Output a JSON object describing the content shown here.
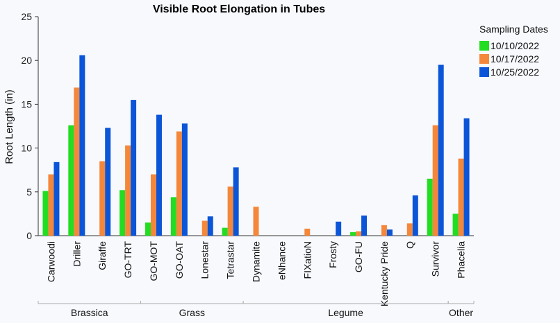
{
  "chart_data": {
    "type": "bar",
    "title": "Visible Root Elongation in Tubes",
    "ylabel": "Root Length (in)",
    "xlabel": "",
    "ylim": [
      0,
      25
    ],
    "yticks": [
      0,
      5,
      10,
      15,
      20,
      25
    ],
    "grid": false,
    "legend": {
      "title": "Sampling Dates",
      "position": "top-right"
    },
    "categories": [
      "Carwoodi",
      "Driller",
      "Giraffe",
      "GO-TRT",
      "GO-MOT",
      "GO-OAT",
      "Lonestar",
      "Tetrastar",
      "Dynamite",
      "eNhance",
      "FIXatioN",
      "Frosty",
      "GO-FU",
      "Kentucky Pride",
      "Q",
      "Survivor",
      "Phacelia"
    ],
    "groups": [
      {
        "name": "Brassica",
        "categories": [
          "Carwoodi",
          "Driller",
          "Giraffe",
          "GO-TRT"
        ]
      },
      {
        "name": "Grass",
        "categories": [
          "GO-MOT",
          "GO-OAT",
          "Lonestar",
          "Tetrastar"
        ]
      },
      {
        "name": "Legume",
        "categories": [
          "Dynamite",
          "eNhance",
          "FIXatioN",
          "Frosty",
          "GO-FU",
          "Kentucky Pride",
          "Q",
          "Survivor"
        ]
      },
      {
        "name": "Other",
        "categories": [
          "Phacelia"
        ]
      }
    ],
    "series": [
      {
        "name": "10/10/2022",
        "color": "#22dd22",
        "values": [
          5.1,
          12.6,
          0,
          5.2,
          1.5,
          4.4,
          0,
          0.9,
          0,
          0,
          0,
          0,
          0.4,
          0,
          0,
          6.5,
          2.5
        ]
      },
      {
        "name": "10/17/2022",
        "color": "#f5873a",
        "values": [
          7.0,
          16.9,
          8.5,
          10.3,
          7.0,
          11.9,
          1.7,
          5.6,
          3.3,
          0,
          0.8,
          0,
          0.5,
          1.2,
          1.4,
          12.6,
          8.8
        ]
      },
      {
        "name": "10/25/2022",
        "color": "#0b55d8",
        "values": [
          8.4,
          20.6,
          12.3,
          15.5,
          13.8,
          12.8,
          2.2,
          7.8,
          0,
          0,
          0,
          1.6,
          2.3,
          0.7,
          4.6,
          19.5,
          13.4
        ]
      }
    ]
  }
}
